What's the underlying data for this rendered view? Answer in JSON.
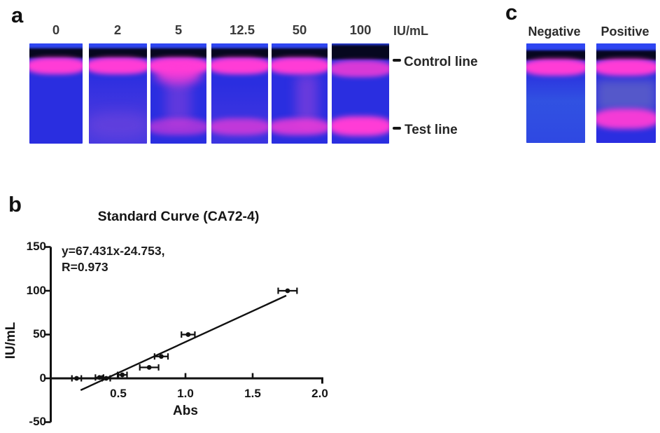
{
  "figure": {
    "panel_a_letter": "a",
    "panel_b_letter": "b",
    "panel_c_letter": "c"
  },
  "panel_a": {
    "unit_label": "IU/mL",
    "strips": [
      {
        "label": "0"
      },
      {
        "label": "2"
      },
      {
        "label": "5"
      },
      {
        "label": "12.5"
      },
      {
        "label": "50"
      },
      {
        "label": "100"
      }
    ],
    "control_line_label": "Control line",
    "test_line_label": "Test line"
  },
  "panel_c": {
    "strips": [
      {
        "label": "Negative"
      },
      {
        "label": "Positive"
      }
    ]
  },
  "chart_data": {
    "type": "scatter",
    "title": "Standard Curve (CA72-4)",
    "equation_line1": "y=67.431x-24.753,",
    "equation_line2": "R=0.973",
    "xlabel": "Abs",
    "ylabel": "IU/mL",
    "xlim": [
      0,
      2.0
    ],
    "ylim": [
      -50,
      150
    ],
    "xticks": [
      "0.5",
      "1.0",
      "1.5",
      "2.0"
    ],
    "xtick_values": [
      0.5,
      1.0,
      1.5,
      2.0
    ],
    "yticks": [
      "150",
      "100",
      "50",
      "0",
      "-50"
    ],
    "ytick_values": [
      150,
      100,
      50,
      0,
      -50
    ],
    "grid": false,
    "legend": null,
    "marker_color": "#111111",
    "points": [
      {
        "x": 0.19,
        "y": 0,
        "xerr": 0.035
      },
      {
        "x": 0.36,
        "y": 1,
        "xerr": 0.03
      },
      {
        "x": 0.41,
        "y": 0,
        "xerr": 0.03
      },
      {
        "x": 0.53,
        "y": 4,
        "xerr": 0.035
      },
      {
        "x": 0.73,
        "y": 12.5,
        "xerr": 0.07
      },
      {
        "x": 0.82,
        "y": 25,
        "xerr": 0.05
      },
      {
        "x": 1.02,
        "y": 50,
        "xerr": 0.05
      },
      {
        "x": 1.76,
        "y": 100,
        "xerr": 0.07
      }
    ],
    "fit_line": {
      "x1": 0.22,
      "y1": -13.5,
      "x2": 1.75,
      "y2": 94.5
    }
  },
  "colors": {
    "strip_blue": "#2a2ee0",
    "band_pink": "#ff3cd6",
    "dark_band": "#06071f",
    "axis_black": "#111111",
    "text_dark": "#262626"
  }
}
